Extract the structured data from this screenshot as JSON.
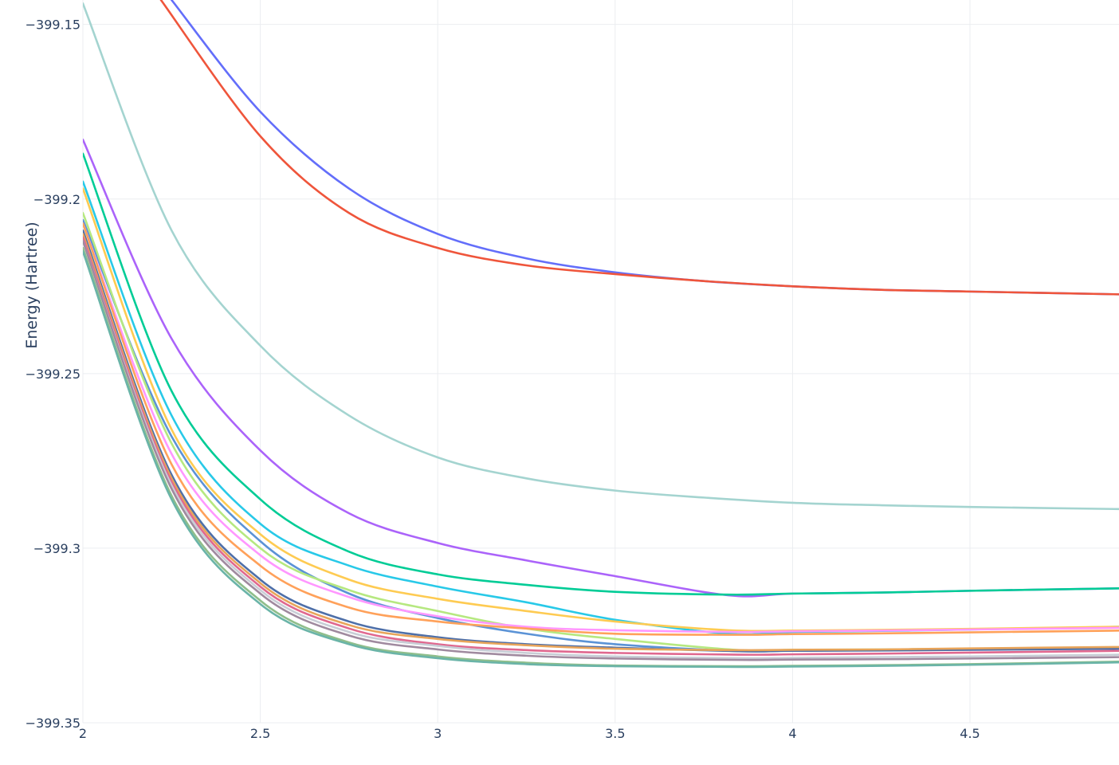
{
  "chart_data": {
    "type": "line",
    "title": "",
    "xlabel": "",
    "ylabel": "Energy (Hartree)",
    "xlim": [
      2,
      4.92
    ],
    "ylim": [
      -399.35,
      -399.143
    ],
    "x_ticks": [
      2,
      2.5,
      3,
      3.5,
      4,
      4.5
    ],
    "x_tick_labels": [
      "2",
      "2.5",
      "3",
      "3.5",
      "4",
      "4.5"
    ],
    "y_ticks": [
      -399.35,
      -399.3,
      -399.25,
      -399.2,
      -399.15
    ],
    "y_tick_labels": [
      "−399.35",
      "−399.3",
      "−399.25",
      "−399.2",
      "−399.15"
    ],
    "grid": true,
    "legend": "none",
    "series": [
      {
        "color": "#636efa",
        "x": [
          2.25,
          2.5,
          2.75,
          3.0,
          3.25,
          3.5,
          3.75,
          4.0,
          4.25,
          4.5,
          4.92
        ],
        "y": [
          -399.143,
          -399.175,
          -399.197,
          -399.21,
          -399.217,
          -399.221,
          -399.2235,
          -399.225,
          -399.226,
          -399.2265,
          -399.2273
        ]
      },
      {
        "color": "#ef553b",
        "x": [
          2.22,
          2.5,
          2.75,
          3.0,
          3.25,
          3.5,
          3.75,
          4.0,
          4.25,
          4.5,
          4.92
        ],
        "y": [
          -399.143,
          -399.182,
          -399.204,
          -399.214,
          -399.219,
          -399.2215,
          -399.2235,
          -399.225,
          -399.226,
          -399.2265,
          -399.2273
        ]
      },
      {
        "color": "#a4d4d0",
        "x": [
          2.0,
          2.25,
          2.5,
          2.75,
          3.0,
          3.25,
          3.5,
          3.75,
          4.0,
          4.25,
          4.5,
          4.92
        ],
        "y": [
          -399.144,
          -399.209,
          -399.242,
          -399.262,
          -399.274,
          -399.28,
          -399.2835,
          -399.2855,
          -399.287,
          -399.2877,
          -399.2882,
          -399.2888
        ]
      },
      {
        "color": "#ab63fa",
        "x": [
          2.0,
          2.25,
          2.5,
          2.75,
          3.0,
          3.25,
          3.5,
          3.82,
          4.0,
          4.25,
          4.5,
          4.92
        ],
        "y": [
          -399.183,
          -399.24,
          -399.272,
          -399.29,
          -399.2985,
          -399.3035,
          -399.308,
          -399.3135,
          -399.313,
          -399.3127,
          -399.3122,
          -399.3115
        ]
      },
      {
        "color": "#00cc96",
        "x": [
          2.0,
          2.25,
          2.5,
          2.75,
          3.0,
          3.25,
          3.5,
          3.82,
          4.0,
          4.25,
          4.5,
          4.92
        ],
        "y": [
          -399.187,
          -399.255,
          -399.286,
          -399.301,
          -399.3075,
          -399.3105,
          -399.3125,
          -399.3133,
          -399.313,
          -399.3127,
          -399.3122,
          -399.3115
        ]
      },
      {
        "color": "#28c9e8",
        "x": [
          2.0,
          2.25,
          2.5,
          2.75,
          3.0,
          3.25,
          3.5,
          3.82,
          4.0,
          4.25,
          4.5,
          4.92
        ],
        "y": [
          -399.195,
          -399.262,
          -399.293,
          -399.305,
          -399.311,
          -399.3155,
          -399.3205,
          -399.3245,
          -399.324,
          -399.3237,
          -399.3233,
          -399.3225
        ]
      },
      {
        "color": "#fecb52",
        "x": [
          2.0,
          2.25,
          2.5,
          2.75,
          3.0,
          3.25,
          3.5,
          3.82,
          4.0,
          4.25,
          4.5,
          4.92
        ],
        "y": [
          -399.197,
          -399.266,
          -399.296,
          -399.309,
          -399.3145,
          -399.318,
          -399.321,
          -399.3235,
          -399.3236,
          -399.3234,
          -399.3231,
          -399.3225
        ]
      },
      {
        "color": "#5b93d6",
        "x": [
          2.0,
          2.25,
          2.5,
          2.75,
          3.0,
          3.25,
          3.5,
          3.85,
          4.0,
          4.25,
          4.5,
          4.92
        ],
        "y": [
          -399.206,
          -399.268,
          -399.298,
          -399.313,
          -399.32,
          -399.3245,
          -399.3275,
          -399.3295,
          -399.3293,
          -399.3291,
          -399.3289,
          -399.3285
        ]
      },
      {
        "color": "#b6e880",
        "x": [
          2.0,
          2.25,
          2.5,
          2.75,
          3.0,
          3.25,
          3.5,
          3.85,
          4.0,
          4.25,
          4.5,
          4.92
        ],
        "y": [
          -399.204,
          -399.27,
          -399.3,
          -399.312,
          -399.318,
          -399.323,
          -399.326,
          -399.3292,
          -399.3291,
          -399.329,
          -399.3288,
          -399.3284
        ]
      },
      {
        "color": "#ff97ff",
        "x": [
          2.0,
          2.25,
          2.5,
          2.75,
          3.0,
          3.25,
          3.5,
          3.85,
          4.0,
          4.25,
          4.5,
          4.92
        ],
        "y": [
          -399.207,
          -399.273,
          -399.302,
          -399.314,
          -399.3195,
          -399.3225,
          -399.3235,
          -399.324,
          -399.3238,
          -399.3236,
          -399.3233,
          -399.3228
        ]
      },
      {
        "color": "#ffa15a",
        "x": [
          2.0,
          2.25,
          2.5,
          2.75,
          3.0,
          3.25,
          3.5,
          3.85,
          4.0,
          4.25,
          4.5,
          4.92
        ],
        "y": [
          -399.207,
          -399.276,
          -399.305,
          -399.317,
          -399.321,
          -399.323,
          -399.3245,
          -399.3248,
          -399.3246,
          -399.3244,
          -399.3241,
          -399.3236
        ]
      },
      {
        "color": "#4e6fa8",
        "x": [
          2.0,
          2.25,
          2.5,
          2.75,
          3.0,
          3.25,
          3.5,
          3.85,
          4.0,
          4.25,
          4.5,
          4.92
        ],
        "y": [
          -399.209,
          -399.279,
          -399.309,
          -399.321,
          -399.3255,
          -399.3275,
          -399.3285,
          -399.3295,
          -399.3294,
          -399.3293,
          -399.3291,
          -399.3288
        ]
      },
      {
        "color": "#e8a45a",
        "x": [
          2.0,
          2.25,
          2.5,
          2.75,
          3.0,
          3.25,
          3.5,
          3.85,
          4.0,
          4.25,
          4.5,
          4.92
        ],
        "y": [
          -399.21,
          -399.28,
          -399.31,
          -399.322,
          -399.326,
          -399.3278,
          -399.3288,
          -399.3292,
          -399.3291,
          -399.329,
          -399.3287,
          -399.3283
        ]
      },
      {
        "color": "#e0688f",
        "x": [
          2.0,
          2.25,
          2.5,
          2.75,
          3.0,
          3.25,
          3.5,
          3.85,
          4.0,
          4.25,
          4.5,
          4.92
        ],
        "y": [
          -399.211,
          -399.281,
          -399.311,
          -399.323,
          -399.3275,
          -399.3292,
          -399.33,
          -399.3305,
          -399.3304,
          -399.3302,
          -399.3299,
          -399.3294
        ]
      },
      {
        "color": "#c8cdd6",
        "x": [
          2.0,
          2.25,
          2.5,
          2.75,
          3.0,
          3.25,
          3.5,
          3.85,
          4.0,
          4.25,
          4.5,
          4.92
        ],
        "y": [
          -399.212,
          -399.282,
          -399.312,
          -399.324,
          -399.328,
          -399.33,
          -399.331,
          -399.3315,
          -399.3314,
          -399.3312,
          -399.331,
          -399.3305
        ]
      },
      {
        "color": "#a08a9f",
        "x": [
          2.0,
          2.25,
          2.5,
          2.75,
          3.0,
          3.25,
          3.5,
          3.85,
          4.0,
          4.25,
          4.5,
          4.92
        ],
        "y": [
          -399.212,
          -399.283,
          -399.313,
          -399.325,
          -399.329,
          -399.3308,
          -399.3316,
          -399.332,
          -399.3319,
          -399.3318,
          -399.3316,
          -399.3312
        ]
      },
      {
        "color": "#8fbe8b",
        "x": [
          2.0,
          2.25,
          2.5,
          2.75,
          3.0,
          3.25,
          3.5,
          3.85,
          4.0,
          4.25,
          4.5,
          4.92
        ],
        "y": [
          -399.214,
          -399.285,
          -399.315,
          -399.327,
          -399.331,
          -399.3328,
          -399.3336,
          -399.3338,
          -399.3337,
          -399.3335,
          -399.3332,
          -399.3325
        ]
      },
      {
        "color": "#6ab4a8",
        "x": [
          2.0,
          2.25,
          2.5,
          2.75,
          3.0,
          3.25,
          3.5,
          3.85,
          4.0,
          4.25,
          4.5,
          4.92
        ],
        "y": [
          -399.215,
          -399.286,
          -399.316,
          -399.3275,
          -399.3315,
          -399.3332,
          -399.3338,
          -399.334,
          -399.3339,
          -399.3337,
          -399.3334,
          -399.3327
        ]
      }
    ]
  }
}
